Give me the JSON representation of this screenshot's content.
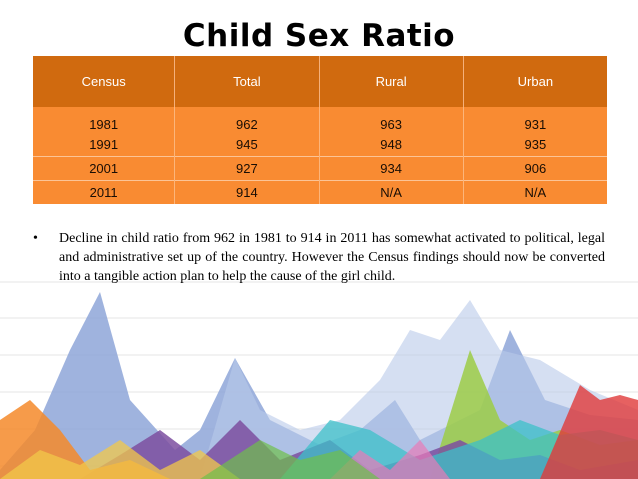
{
  "title": "Child Sex Ratio",
  "table": {
    "headers": [
      "Census",
      "Total",
      "Rural",
      "Urban"
    ],
    "rows": [
      [
        "1981",
        "962",
        "963",
        "931"
      ],
      [
        "1991",
        "945",
        "948",
        "935"
      ],
      [
        "2001",
        "927",
        "934",
        "906"
      ],
      [
        "2011",
        "914",
        "N/A",
        "N/A"
      ]
    ]
  },
  "bullet": {
    "marker": "•",
    "text": "Decline in child ratio from 962 in 1981 to 914 in 2011 has somewhat activated to political, legal and administrative set up of the country. However the Census findings should now be converted into a tangible action plan to help the cause of the girl child."
  },
  "colors": {
    "header_bg": "#d06a0f",
    "row_bg": "#f98b32",
    "art_blue": "#8ea6d8",
    "art_purple": "#7c4fa0",
    "art_green": "#9ccc46",
    "art_teal": "#3cc0c8",
    "art_red": "#e03a3a",
    "art_orange": "#f58a2a"
  }
}
